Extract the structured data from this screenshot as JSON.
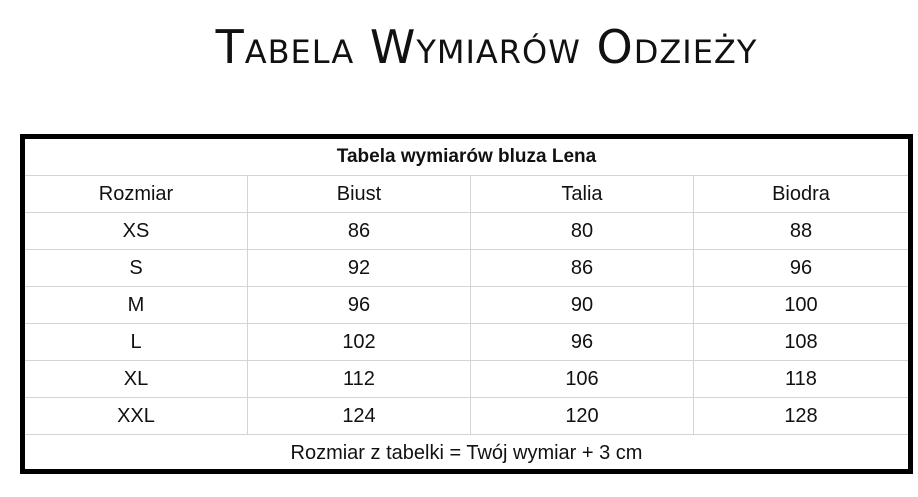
{
  "heading": "Tabela Wymiarów Odzieży",
  "table": {
    "caption": "Tabela wymiarów bluza Lena",
    "columns": [
      "Rozmiar",
      "Biust",
      "Talia",
      "Biodra"
    ],
    "rows": [
      [
        "XS",
        "86",
        "80",
        "88"
      ],
      [
        "S",
        "92",
        "86",
        "96"
      ],
      [
        "M",
        "96",
        "90",
        "100"
      ],
      [
        "L",
        "102",
        "96",
        "108"
      ],
      [
        "XL",
        "112",
        "106",
        "118"
      ],
      [
        "XXL",
        "124",
        "120",
        "128"
      ]
    ],
    "footer": "Rozmiar z tabelki = Twój wymiar + 3 cm"
  }
}
